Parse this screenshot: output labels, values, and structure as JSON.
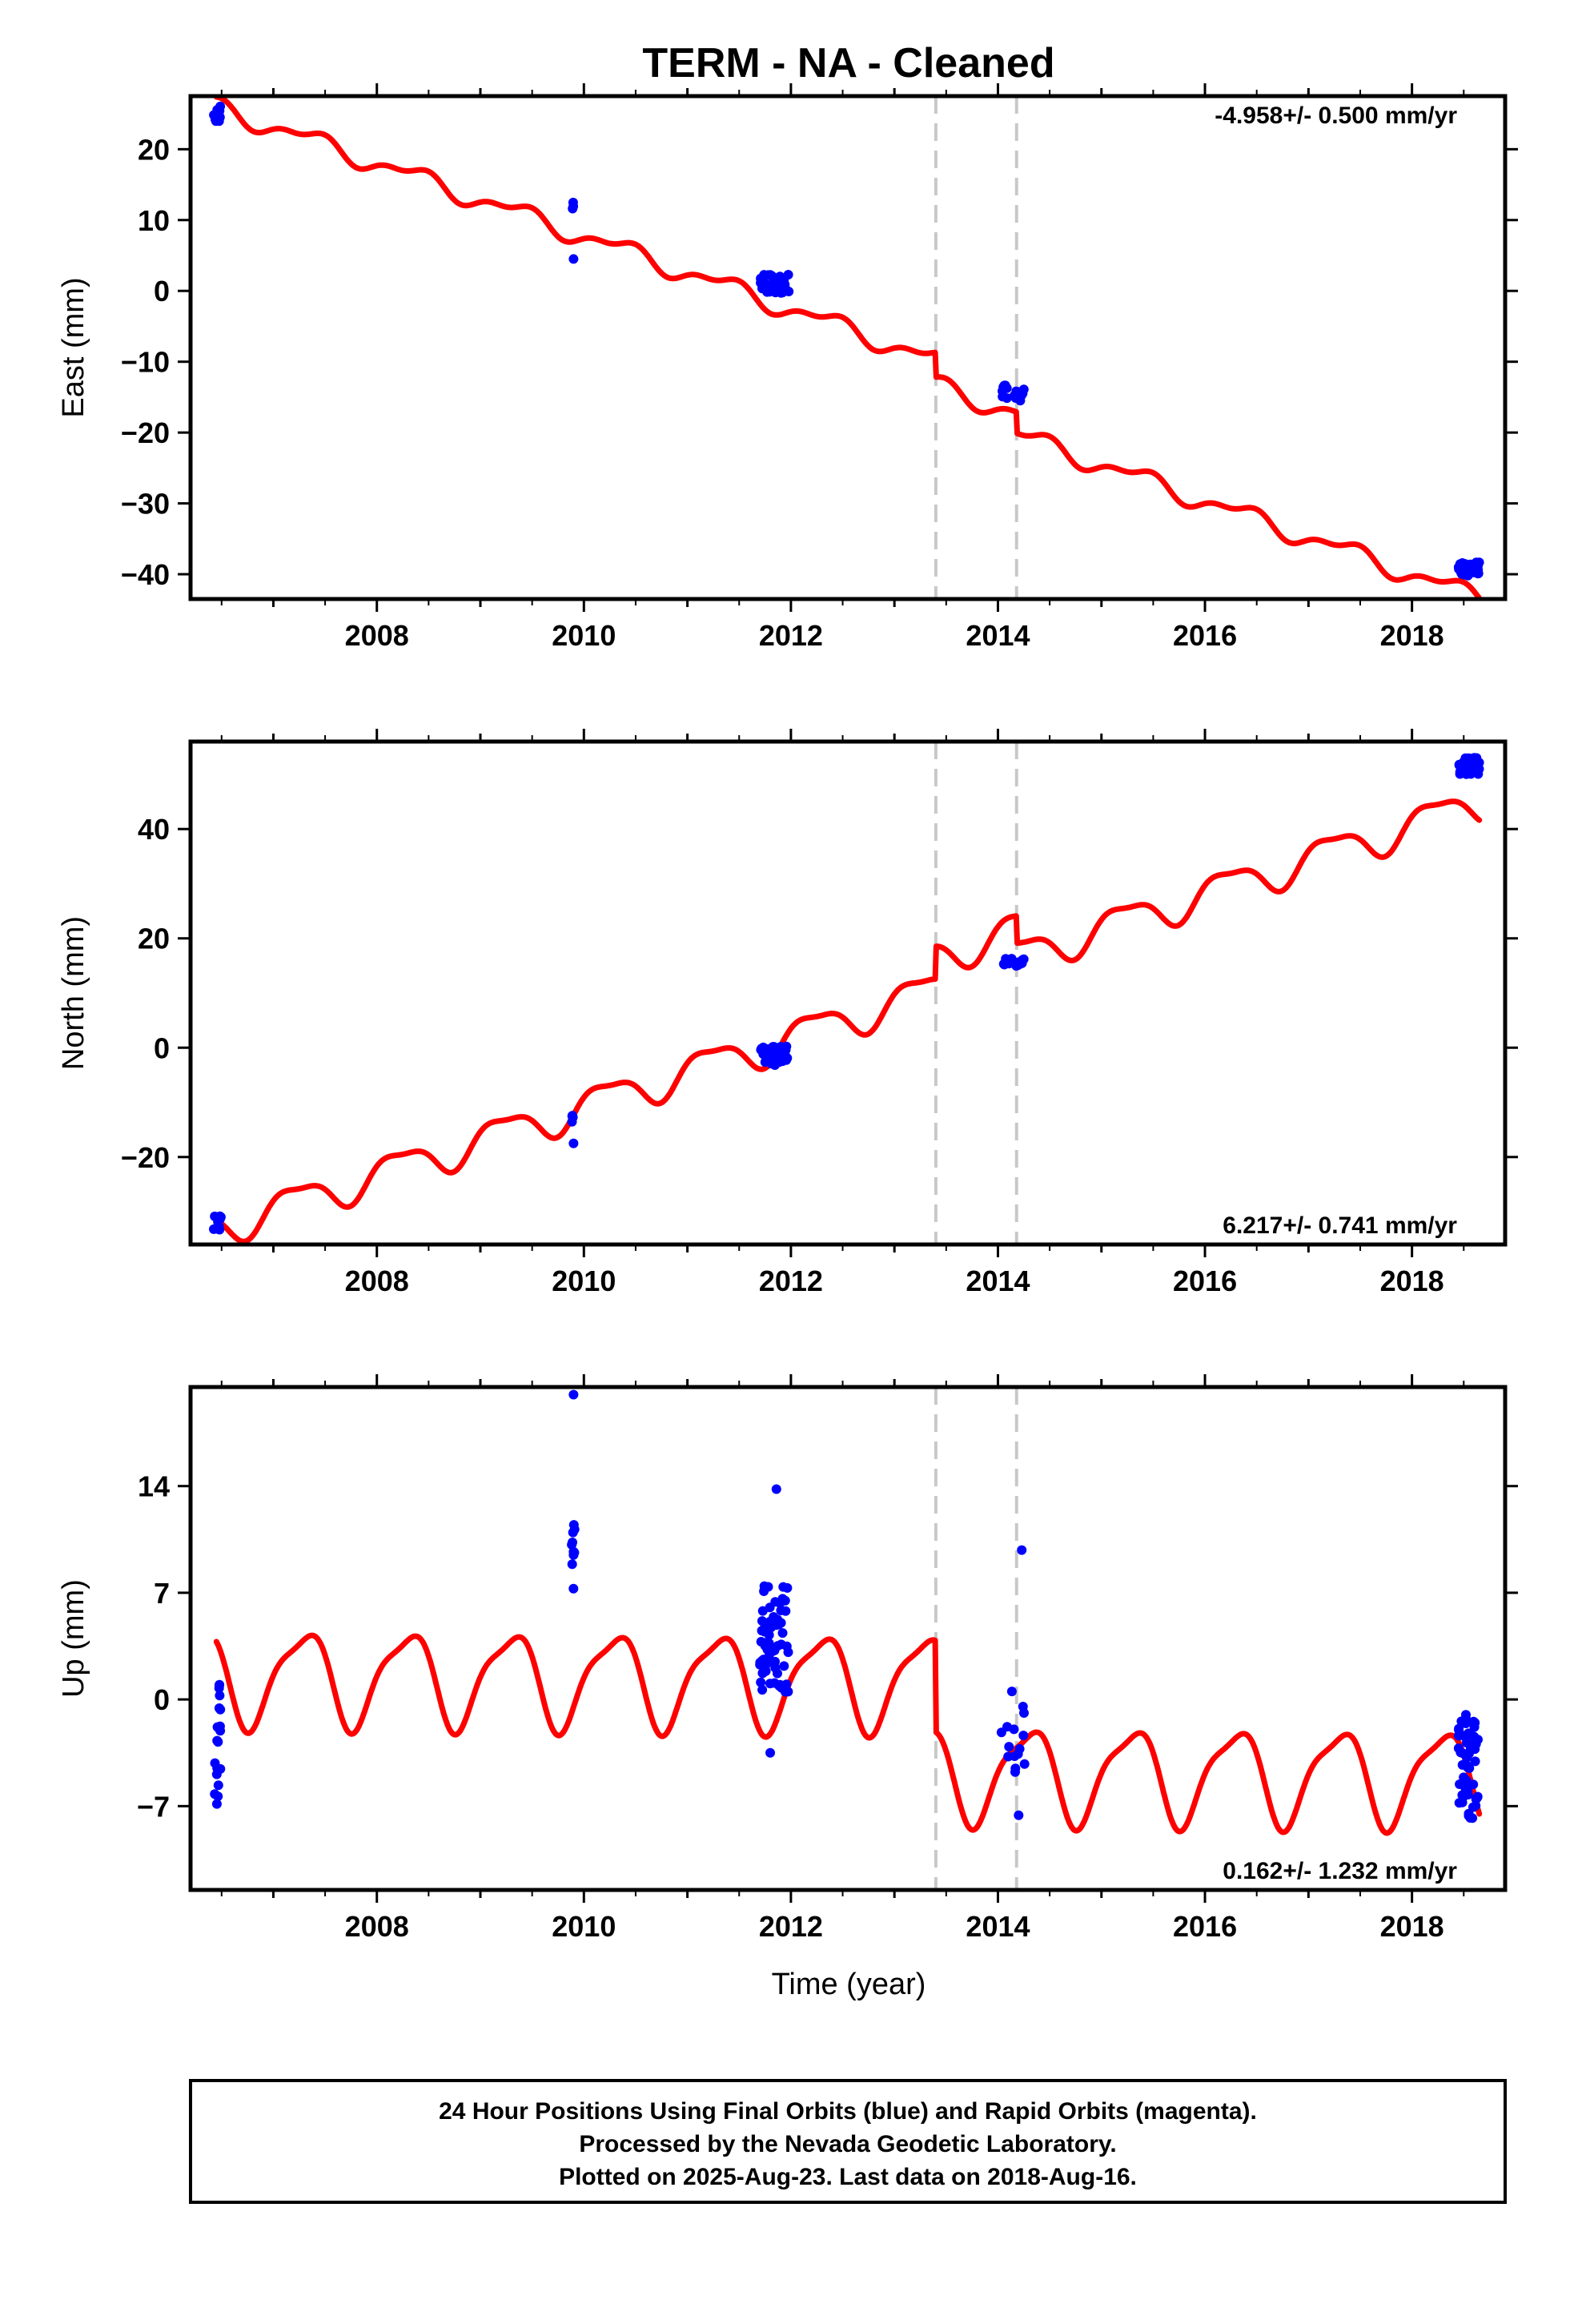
{
  "title": "TERM  - NA - Cleaned",
  "colors": {
    "model": "#ff0000",
    "final_orbits": "#0000ff",
    "event_line": "#c8c8c8",
    "frame": "#000000"
  },
  "xlabel": "Time (year)",
  "footer": {
    "lines": [
      "24 Hour Positions Using Final Orbits (blue) and Rapid Orbits (magenta).",
      "Processed by the Nevada Geodetic Laboratory.",
      "Plotted on 2025-Aug-23. Last data on 2018-Aug-16."
    ]
  },
  "chart_data": [
    {
      "type": "scatter",
      "component": "east",
      "ylabel": "East (mm)",
      "rate_label": "-4.958+/- 0.500 mm/yr",
      "rate_position": "top-right",
      "xlim": [
        2006.2,
        2018.9
      ],
      "ylim": [
        -43.5,
        27.5
      ],
      "x_ticks": [
        2008,
        2010,
        2012,
        2014,
        2016,
        2018
      ],
      "y_ticks": [
        20,
        10,
        0,
        -10,
        -20,
        -30,
        -40
      ],
      "y_tick_labels": [
        "20",
        "10",
        "0",
        "−10",
        "−20",
        "−30",
        "−40"
      ],
      "grid": false,
      "event_lines": [
        2013.4,
        2014.18
      ],
      "model": {
        "offset": 26.0,
        "slope": -5.15,
        "t0": 2006.45,
        "annual": {
          "amp": 1.2,
          "phase": 2.0
        },
        "semiannual": {
          "amp": 0.6,
          "phase": 0.5
        },
        "steps": [
          {
            "t": 2013.4,
            "size": -3.5
          },
          {
            "t": 2014.18,
            "size": -3.0
          }
        ]
      },
      "clusters": [
        {
          "t0": 2006.42,
          "t1": 2006.5,
          "y": 25.0,
          "spread": 1.2,
          "n": 12
        },
        {
          "t0": 2009.88,
          "t1": 2009.9,
          "y": 12.0,
          "spread": 0.6,
          "n": 3
        },
        {
          "t0": 2011.7,
          "t1": 2011.98,
          "y": 1.0,
          "spread": 1.3,
          "n": 45
        },
        {
          "t0": 2014.03,
          "t1": 2014.25,
          "y": -14.5,
          "spread": 1.3,
          "n": 18
        },
        {
          "t0": 2018.45,
          "t1": 2018.65,
          "y": -39.2,
          "spread": 1.0,
          "n": 40
        }
      ],
      "outliers": [
        {
          "x": 2009.9,
          "y": 4.5
        }
      ]
    },
    {
      "type": "scatter",
      "component": "north",
      "ylabel": "North (mm)",
      "rate_label": "6.217+/- 0.741 mm/yr",
      "rate_position": "bottom-right",
      "xlim": [
        2006.2,
        2018.9
      ],
      "ylim": [
        -36,
        56
      ],
      "x_ticks": [
        2008,
        2010,
        2012,
        2014,
        2016,
        2018
      ],
      "y_ticks": [
        40,
        20,
        0,
        -20
      ],
      "y_tick_labels": [
        "40",
        "20",
        "0",
        "−20"
      ],
      "grid": false,
      "event_lines": [
        2013.4,
        2014.18
      ],
      "model": {
        "offset": -33.0,
        "slope": 6.3,
        "t0": 2006.45,
        "annual": {
          "amp": 3.2,
          "phase": 3.0
        },
        "semiannual": {
          "amp": 1.0,
          "phase": 1.0
        },
        "steps": [
          {
            "t": 2013.4,
            "size": 6.0
          },
          {
            "t": 2014.18,
            "size": -5.0
          }
        ]
      },
      "clusters": [
        {
          "t0": 2006.42,
          "t1": 2006.5,
          "y": -32.0,
          "spread": 1.3,
          "n": 10
        },
        {
          "t0": 2009.88,
          "t1": 2009.9,
          "y": -13.0,
          "spread": 1.5,
          "n": 4
        },
        {
          "t0": 2011.7,
          "t1": 2011.98,
          "y": -1.5,
          "spread": 1.8,
          "n": 45
        },
        {
          "t0": 2014.05,
          "t1": 2014.25,
          "y": 15.5,
          "spread": 0.9,
          "n": 18
        },
        {
          "t0": 2018.45,
          "t1": 2018.65,
          "y": 51.5,
          "spread": 1.6,
          "n": 40
        }
      ],
      "outliers": [
        {
          "x": 2009.9,
          "y": -17.5
        }
      ]
    },
    {
      "type": "scatter",
      "component": "up",
      "ylabel": "Up (mm)",
      "rate_label": "0.162+/- 1.232 mm/yr",
      "rate_position": "bottom-right",
      "xlim": [
        2006.2,
        2018.9
      ],
      "ylim": [
        -12.5,
        20.5
      ],
      "x_ticks": [
        2008,
        2010,
        2012,
        2014,
        2016,
        2018
      ],
      "y_ticks": [
        14,
        7,
        0,
        -7
      ],
      "y_tick_labels": [
        "14",
        "7",
        "0",
        "−7"
      ],
      "grid": false,
      "event_lines": [
        2013.4,
        2014.18
      ],
      "model": {
        "offset": 1.5,
        "slope": -0.05,
        "t0": 2006.45,
        "annual": {
          "amp": 3.0,
          "phase": 2.6
        },
        "semiannual": {
          "amp": 0.8,
          "phase": 1.2
        },
        "steps": [
          {
            "t": 2013.4,
            "size": -6.0
          },
          {
            "t": 2014.18,
            "size": 0.0
          }
        ]
      },
      "clusters": [
        {
          "t0": 2006.43,
          "t1": 2006.49,
          "y": -3.0,
          "spread": 4.0,
          "n": 20
        },
        {
          "t0": 2009.88,
          "t1": 2009.91,
          "y": 9.0,
          "spread": 2.5,
          "n": 10
        },
        {
          "t0": 2011.7,
          "t1": 2011.98,
          "y": 4.0,
          "spread": 3.5,
          "n": 70
        },
        {
          "t0": 2014.02,
          "t1": 2014.27,
          "y": -2.0,
          "spread": 2.8,
          "n": 15
        },
        {
          "t0": 2018.45,
          "t1": 2018.65,
          "y": -4.5,
          "spread": 3.5,
          "n": 55
        }
      ],
      "outliers": [
        {
          "x": 2009.9,
          "y": 20.0
        },
        {
          "x": 2011.86,
          "y": 13.8
        },
        {
          "x": 2014.23,
          "y": 9.8
        },
        {
          "x": 2011.8,
          "y": -3.5
        },
        {
          "x": 2014.2,
          "y": -7.6
        }
      ]
    }
  ]
}
